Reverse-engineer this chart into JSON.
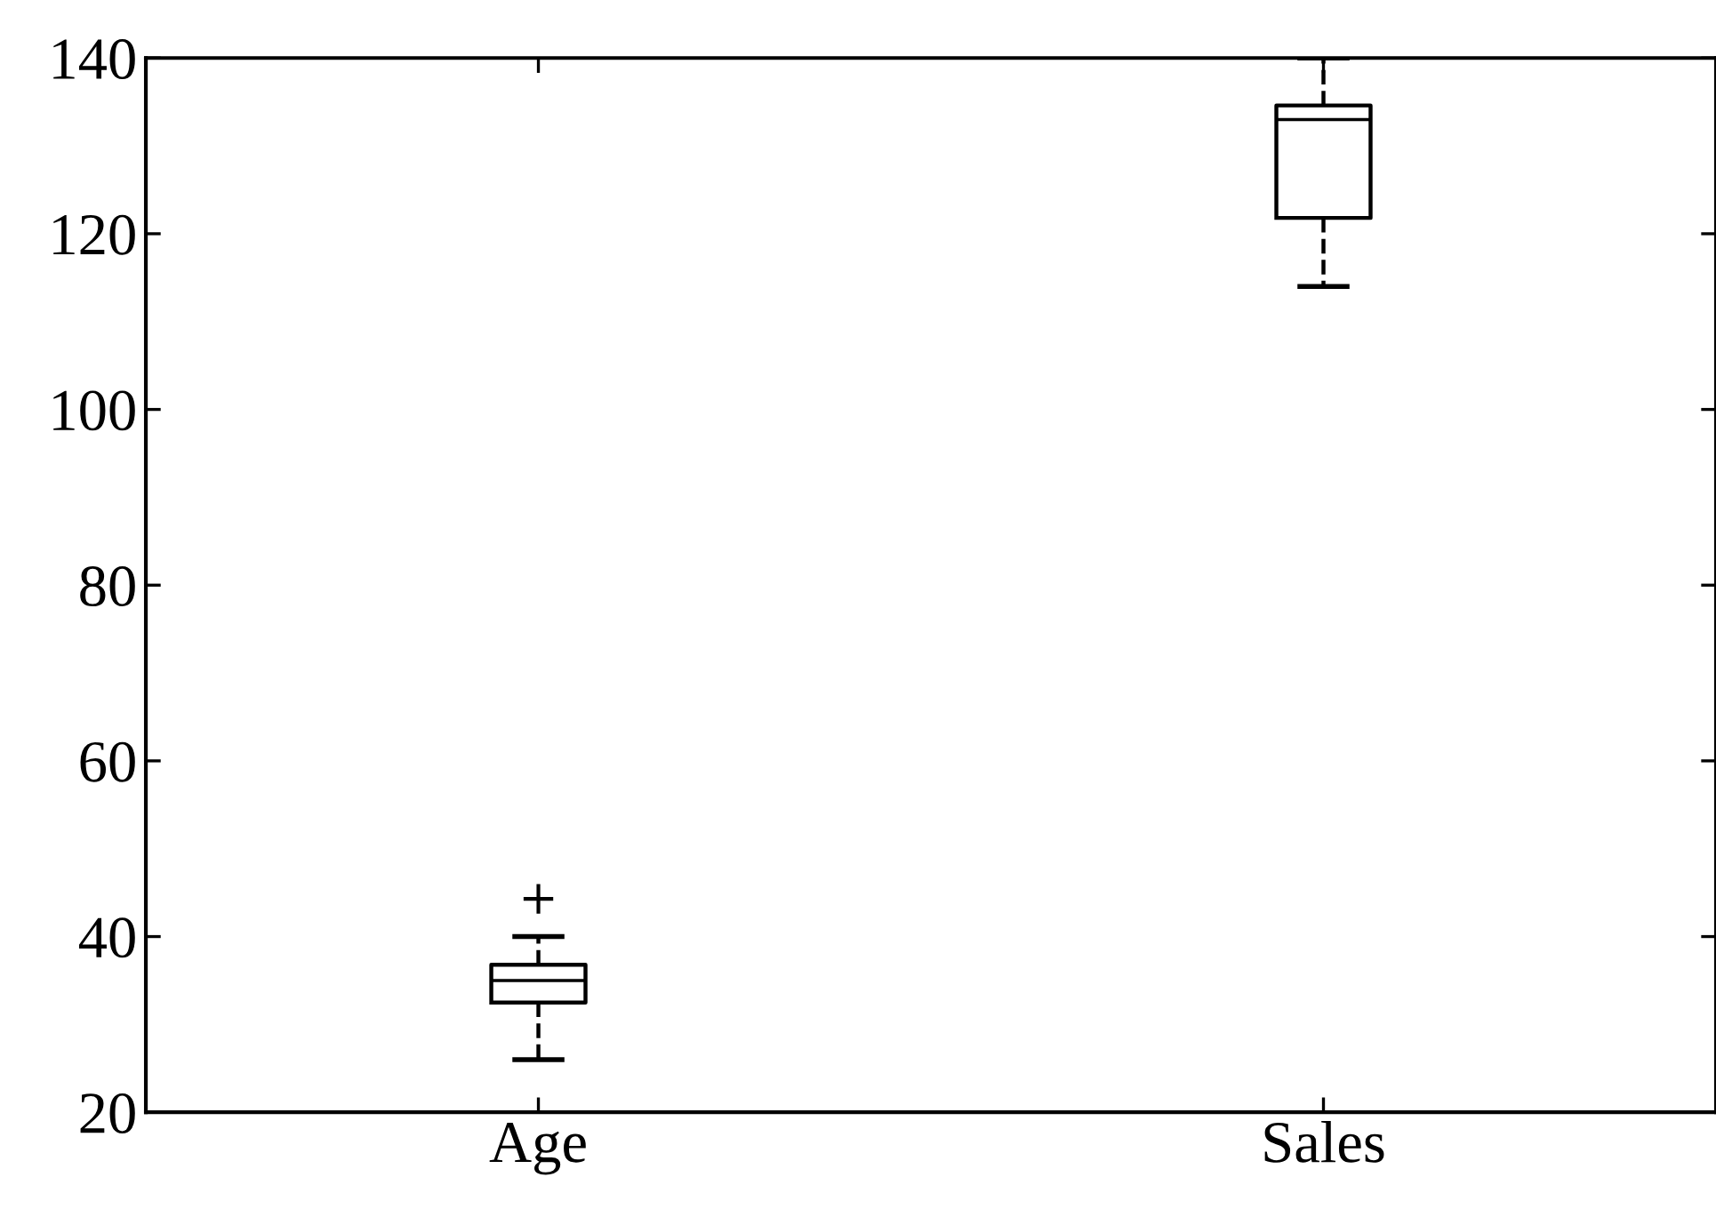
{
  "chart_data": {
    "type": "box",
    "categories": [
      "Age",
      "Sales"
    ],
    "boxes": [
      {
        "low": 26,
        "q1": 32.5,
        "median": 35,
        "q3": 36.8,
        "high": 40,
        "outliers": [
          44.3
        ]
      },
      {
        "low": 114,
        "q1": 121.8,
        "median": 133,
        "q3": 134.6,
        "high": 140
      }
    ],
    "ylim": [
      20,
      140
    ],
    "yticks": [
      20,
      40,
      60,
      80,
      100,
      120,
      140
    ],
    "grid": false,
    "line_style": "dashed",
    "color": "#000000"
  }
}
